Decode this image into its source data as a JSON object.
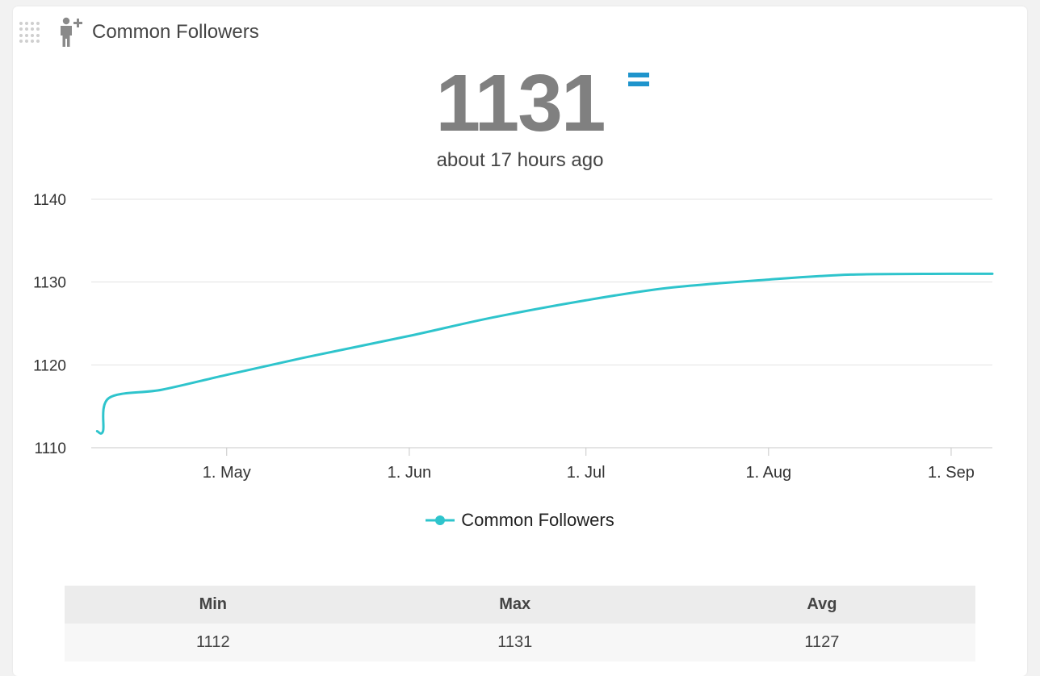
{
  "widget": {
    "title": "Common Followers",
    "value": "1131",
    "trend_icon": "equals-icon",
    "updated": "about 17 hours ago"
  },
  "colors": {
    "line": "#2ec4cc",
    "trend": "#1f94cc",
    "value": "#808080"
  },
  "chart_data": {
    "type": "line",
    "title": "",
    "xlabel": "",
    "ylabel": "",
    "ylim": [
      1110,
      1140
    ],
    "xlim": [
      "2024-04-08",
      "2024-09-08"
    ],
    "y_ticks": [
      1110,
      1120,
      1130,
      1140
    ],
    "x_ticks": [
      {
        "date": "2024-05-01",
        "label": "1. May"
      },
      {
        "date": "2024-06-01",
        "label": "1. Jun"
      },
      {
        "date": "2024-07-01",
        "label": "1. Jul"
      },
      {
        "date": "2024-08-01",
        "label": "1. Aug"
      },
      {
        "date": "2024-09-01",
        "label": "1. Sep"
      }
    ],
    "grid": true,
    "legend_position": "bottom-center",
    "series": [
      {
        "name": "Common Followers",
        "points": [
          [
            "2024-04-09",
            1112
          ],
          [
            "2024-04-10",
            1112
          ],
          [
            "2024-04-11",
            1116
          ],
          [
            "2024-04-20",
            1117
          ],
          [
            "2024-05-01",
            1118.8
          ],
          [
            "2024-05-15",
            1121
          ],
          [
            "2024-06-01",
            1123.5
          ],
          [
            "2024-06-15",
            1125.7
          ],
          [
            "2024-07-01",
            1127.8
          ],
          [
            "2024-07-15",
            1129.3
          ],
          [
            "2024-08-01",
            1130.3
          ],
          [
            "2024-08-15",
            1130.9
          ],
          [
            "2024-09-01",
            1131
          ],
          [
            "2024-09-08",
            1131
          ]
        ]
      }
    ]
  },
  "stats": {
    "headers": [
      "Min",
      "Max",
      "Avg"
    ],
    "values": [
      "1112",
      "1131",
      "1127"
    ]
  }
}
